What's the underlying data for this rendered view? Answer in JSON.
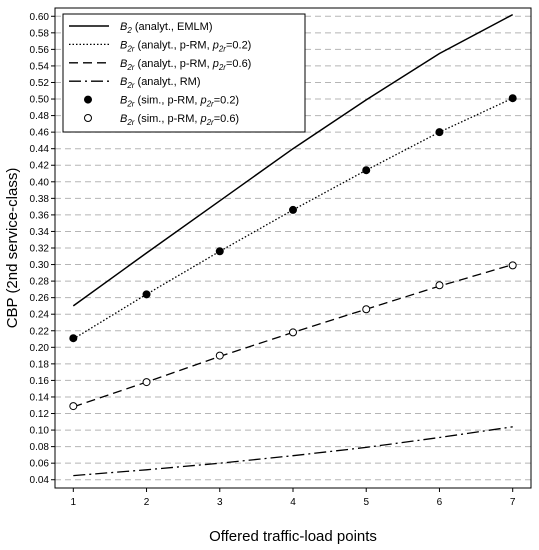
{
  "chart_data": {
    "type": "line",
    "xlabel": "Offered traffic-load points",
    "ylabel": "CBP (2nd service-class)",
    "xlim": [
      0.75,
      7.25
    ],
    "ylim": [
      0.03,
      0.61
    ],
    "x_ticks": [
      1,
      2,
      3,
      4,
      5,
      6,
      7
    ],
    "y_ticks": [
      0.04,
      0.06,
      0.08,
      0.1,
      0.12,
      0.14,
      0.16,
      0.18,
      0.2,
      0.22,
      0.24,
      0.26,
      0.28,
      0.3,
      0.32,
      0.34,
      0.36,
      0.38,
      0.4,
      0.42,
      0.44,
      0.46,
      0.48,
      0.5,
      0.52,
      0.54,
      0.56,
      0.58,
      0.6
    ],
    "y_tick_labels": [
      "0.04",
      "0.06",
      "0.08",
      "0.10",
      "0.12",
      "0.14",
      "0.16",
      "0.18",
      "0.20",
      "0.22",
      "0.24",
      "0.26",
      "0.28",
      "0.30",
      "0.32",
      "0.34",
      "0.36",
      "0.38",
      "0.40",
      "0.42",
      "0.44",
      "0.46",
      "0.48",
      "0.50",
      "0.52",
      "0.54",
      "0.56",
      "0.58",
      "0.60"
    ],
    "grid": "horizontal dashed",
    "legend_position": "top-left",
    "x": [
      1,
      2,
      3,
      4,
      5,
      6,
      7
    ],
    "series": [
      {
        "label_main": "B",
        "label_sub": "2",
        "label_rest": " (analyt., EMLM)",
        "style": "solid",
        "values": [
          0.25,
          0.314,
          0.377,
          0.44,
          0.499,
          0.555,
          0.602
        ]
      },
      {
        "label_main": "B",
        "label_sub": "2r",
        "label_rest_pre": " (analyt., p-RM, ",
        "label_p": "p",
        "label_p_sub": "2r",
        "label_p_val": "=0.2)",
        "style": "dotted",
        "values": [
          0.21,
          0.264,
          0.316,
          0.366,
          0.414,
          0.46,
          0.501
        ]
      },
      {
        "label_main": "B",
        "label_sub": "2r",
        "label_rest_pre": " (analyt., p-RM, ",
        "label_p": "p",
        "label_p_sub": "2r",
        "label_p_val": "=0.6)",
        "style": "dashed",
        "values": [
          0.128,
          0.158,
          0.189,
          0.218,
          0.246,
          0.274,
          0.3
        ]
      },
      {
        "label_main": "B",
        "label_sub": "2r",
        "label_rest": " (analyt., RM)",
        "style": "dashdot",
        "values": [
          0.045,
          0.052,
          0.06,
          0.069,
          0.079,
          0.091,
          0.104
        ]
      },
      {
        "label_main": "B",
        "label_sub": "2r",
        "label_rest_pre": " (sim., p-RM, ",
        "label_p": "p",
        "label_p_sub": "2r",
        "label_p_val": "=0.2)",
        "style": "marker-filled",
        "values": [
          0.211,
          0.264,
          0.316,
          0.366,
          0.414,
          0.46,
          0.501
        ]
      },
      {
        "label_main": "B",
        "label_sub": "2r",
        "label_rest_pre": " (sim., p-RM, ",
        "label_p": "p",
        "label_p_sub": "2r",
        "label_p_val": "=0.6)",
        "style": "marker-open",
        "values": [
          0.129,
          0.158,
          0.19,
          0.218,
          0.246,
          0.275,
          0.299
        ]
      }
    ]
  }
}
